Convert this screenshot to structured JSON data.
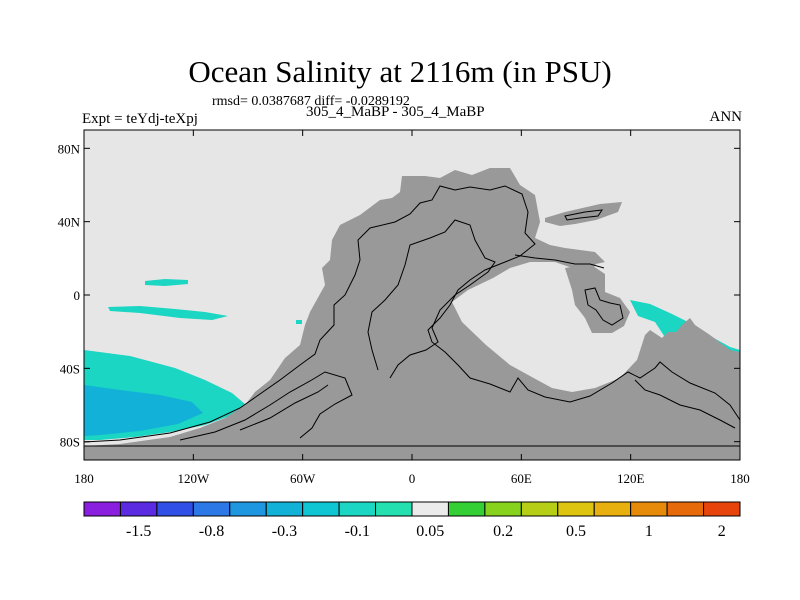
{
  "map": {
    "title": "Ocean Salinity at 2116m (in PSU)",
    "stats": "rmsd= 0.0387687 diff= -0.0289192",
    "expt_label": "Expt = teYdj-teXpj",
    "subtitle": "305_4_MaBP - 305_4_MaBP",
    "season": "ANN",
    "projection": "cylindrical equidistant",
    "lon_range": [
      -180,
      180
    ],
    "lat_range": [
      -90,
      90
    ],
    "lat_ticks": [
      {
        "value": 80,
        "label": "80N"
      },
      {
        "value": 40,
        "label": "40N"
      },
      {
        "value": 0,
        "label": "0"
      },
      {
        "value": -40,
        "label": "40S"
      },
      {
        "value": -80,
        "label": "80S"
      }
    ],
    "lon_ticks": [
      {
        "value": -180,
        "label": "180"
      },
      {
        "value": -120,
        "label": "120W"
      },
      {
        "value": -60,
        "label": "60W"
      },
      {
        "value": 0,
        "label": "0"
      },
      {
        "value": 60,
        "label": "60E"
      },
      {
        "value": 120,
        "label": "120E"
      },
      {
        "value": 180,
        "label": "180"
      }
    ],
    "colors": {
      "ocean_background": "#e6e6e6",
      "land": "#999999",
      "coastline": "#000000"
    }
  },
  "colorbar": {
    "colors": [
      "#8a1fe0",
      "#5a2be0",
      "#2f4fe6",
      "#2b78e6",
      "#1e96e0",
      "#12b1d8",
      "#10c6d2",
      "#1ad6c2",
      "#24e0b0",
      "#ebebeb",
      "#34cf34",
      "#86d21c",
      "#b6cf16",
      "#dcc410",
      "#e8b00e",
      "#e68a0a",
      "#e66a0a",
      "#e6440a"
    ],
    "labels": [
      {
        "after_box": 2,
        "text": "-1.5"
      },
      {
        "after_box": 4,
        "text": "-0.8"
      },
      {
        "after_box": 6,
        "text": "-0.3"
      },
      {
        "after_box": 8,
        "text": "-0.1"
      },
      {
        "after_box": 10,
        "text": "0.05"
      },
      {
        "after_box": 12,
        "text": "0.2"
      },
      {
        "after_box": 14,
        "text": "0.5"
      },
      {
        "after_box": 16,
        "text": "1"
      },
      {
        "after_box": 18,
        "text": "2"
      }
    ]
  }
}
